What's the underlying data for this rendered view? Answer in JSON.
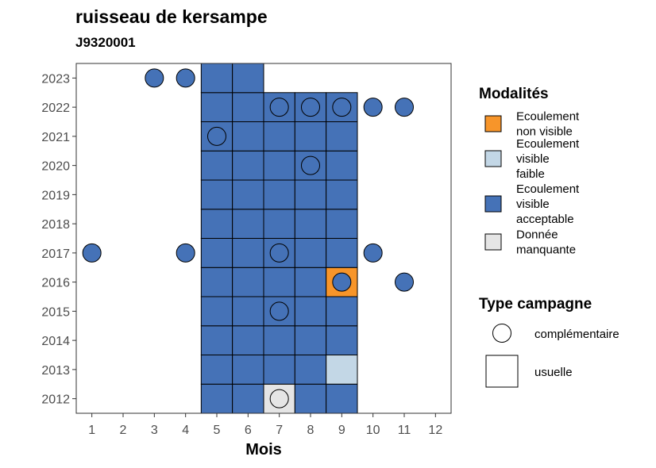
{
  "chart_data": {
    "type": "heatmap",
    "title": "ruisseau de kersampe",
    "subtitle": "J9320001",
    "xlabel": "Mois",
    "ylabel": "",
    "x_ticks": [
      1,
      2,
      3,
      4,
      5,
      6,
      7,
      8,
      9,
      10,
      11,
      12
    ],
    "y_ticks": [
      2012,
      2013,
      2014,
      2015,
      2016,
      2017,
      2018,
      2019,
      2020,
      2021,
      2022,
      2023
    ],
    "xlim": [
      0.5,
      12.5
    ],
    "ylim": [
      2011.5,
      2023.5
    ],
    "colors": {
      "non_visible": "#F7952A",
      "visible_faible": "#C3D7E6",
      "visible_acceptable": "#4572B7",
      "manquante": "#E5E5E5"
    },
    "usual_cells": [
      {
        "year": 2012,
        "month": 5,
        "cat": "visible_acceptable"
      },
      {
        "year": 2012,
        "month": 6,
        "cat": "visible_acceptable"
      },
      {
        "year": 2012,
        "month": 7,
        "cat": "manquante"
      },
      {
        "year": 2012,
        "month": 8,
        "cat": "visible_acceptable"
      },
      {
        "year": 2012,
        "month": 9,
        "cat": "visible_acceptable"
      },
      {
        "year": 2013,
        "month": 5,
        "cat": "visible_acceptable"
      },
      {
        "year": 2013,
        "month": 6,
        "cat": "visible_acceptable"
      },
      {
        "year": 2013,
        "month": 7,
        "cat": "visible_acceptable"
      },
      {
        "year": 2013,
        "month": 8,
        "cat": "visible_acceptable"
      },
      {
        "year": 2013,
        "month": 9,
        "cat": "visible_faible"
      },
      {
        "year": 2014,
        "month": 5,
        "cat": "visible_acceptable"
      },
      {
        "year": 2014,
        "month": 6,
        "cat": "visible_acceptable"
      },
      {
        "year": 2014,
        "month": 7,
        "cat": "visible_acceptable"
      },
      {
        "year": 2014,
        "month": 8,
        "cat": "visible_acceptable"
      },
      {
        "year": 2014,
        "month": 9,
        "cat": "visible_acceptable"
      },
      {
        "year": 2015,
        "month": 5,
        "cat": "visible_acceptable"
      },
      {
        "year": 2015,
        "month": 6,
        "cat": "visible_acceptable"
      },
      {
        "year": 2015,
        "month": 7,
        "cat": "visible_acceptable"
      },
      {
        "year": 2015,
        "month": 8,
        "cat": "visible_acceptable"
      },
      {
        "year": 2015,
        "month": 9,
        "cat": "visible_acceptable"
      },
      {
        "year": 2016,
        "month": 5,
        "cat": "visible_acceptable"
      },
      {
        "year": 2016,
        "month": 6,
        "cat": "visible_acceptable"
      },
      {
        "year": 2016,
        "month": 7,
        "cat": "visible_acceptable"
      },
      {
        "year": 2016,
        "month": 8,
        "cat": "visible_acceptable"
      },
      {
        "year": 2016,
        "month": 9,
        "cat": "non_visible"
      },
      {
        "year": 2017,
        "month": 5,
        "cat": "visible_acceptable"
      },
      {
        "year": 2017,
        "month": 6,
        "cat": "visible_acceptable"
      },
      {
        "year": 2017,
        "month": 7,
        "cat": "visible_acceptable"
      },
      {
        "year": 2017,
        "month": 8,
        "cat": "visible_acceptable"
      },
      {
        "year": 2017,
        "month": 9,
        "cat": "visible_acceptable"
      },
      {
        "year": 2018,
        "month": 5,
        "cat": "visible_acceptable"
      },
      {
        "year": 2018,
        "month": 6,
        "cat": "visible_acceptable"
      },
      {
        "year": 2018,
        "month": 7,
        "cat": "visible_acceptable"
      },
      {
        "year": 2018,
        "month": 8,
        "cat": "visible_acceptable"
      },
      {
        "year": 2018,
        "month": 9,
        "cat": "visible_acceptable"
      },
      {
        "year": 2019,
        "month": 5,
        "cat": "visible_acceptable"
      },
      {
        "year": 2019,
        "month": 6,
        "cat": "visible_acceptable"
      },
      {
        "year": 2019,
        "month": 7,
        "cat": "visible_acceptable"
      },
      {
        "year": 2019,
        "month": 8,
        "cat": "visible_acceptable"
      },
      {
        "year": 2019,
        "month": 9,
        "cat": "visible_acceptable"
      },
      {
        "year": 2020,
        "month": 5,
        "cat": "visible_acceptable"
      },
      {
        "year": 2020,
        "month": 6,
        "cat": "visible_acceptable"
      },
      {
        "year": 2020,
        "month": 7,
        "cat": "visible_acceptable"
      },
      {
        "year": 2020,
        "month": 8,
        "cat": "visible_acceptable"
      },
      {
        "year": 2020,
        "month": 9,
        "cat": "visible_acceptable"
      },
      {
        "year": 2021,
        "month": 5,
        "cat": "visible_acceptable"
      },
      {
        "year": 2021,
        "month": 6,
        "cat": "visible_acceptable"
      },
      {
        "year": 2021,
        "month": 7,
        "cat": "visible_acceptable"
      },
      {
        "year": 2021,
        "month": 8,
        "cat": "visible_acceptable"
      },
      {
        "year": 2021,
        "month": 9,
        "cat": "visible_acceptable"
      },
      {
        "year": 2022,
        "month": 5,
        "cat": "visible_acceptable"
      },
      {
        "year": 2022,
        "month": 6,
        "cat": "visible_acceptable"
      },
      {
        "year": 2022,
        "month": 7,
        "cat": "visible_acceptable"
      },
      {
        "year": 2022,
        "month": 8,
        "cat": "visible_acceptable"
      },
      {
        "year": 2022,
        "month": 9,
        "cat": "visible_acceptable"
      },
      {
        "year": 2023,
        "month": 5,
        "cat": "visible_acceptable"
      },
      {
        "year": 2023,
        "month": 6,
        "cat": "visible_acceptable"
      }
    ],
    "complementary_points": [
      {
        "year": 2012,
        "month": 7,
        "cat": "manquante"
      },
      {
        "year": 2015,
        "month": 7,
        "cat": "visible_acceptable"
      },
      {
        "year": 2016,
        "month": 9,
        "cat": "visible_acceptable"
      },
      {
        "year": 2016,
        "month": 11,
        "cat": "visible_acceptable"
      },
      {
        "year": 2017,
        "month": 1,
        "cat": "visible_acceptable"
      },
      {
        "year": 2017,
        "month": 4,
        "cat": "visible_acceptable"
      },
      {
        "year": 2017,
        "month": 7,
        "cat": "visible_acceptable"
      },
      {
        "year": 2017,
        "month": 10,
        "cat": "visible_acceptable"
      },
      {
        "year": 2020,
        "month": 8,
        "cat": "visible_acceptable"
      },
      {
        "year": 2021,
        "month": 5,
        "cat": "visible_acceptable"
      },
      {
        "year": 2022,
        "month": 7,
        "cat": "visible_acceptable"
      },
      {
        "year": 2022,
        "month": 8,
        "cat": "visible_acceptable"
      },
      {
        "year": 2022,
        "month": 9,
        "cat": "visible_acceptable"
      },
      {
        "year": 2022,
        "month": 10,
        "cat": "visible_acceptable"
      },
      {
        "year": 2022,
        "month": 11,
        "cat": "visible_acceptable"
      },
      {
        "year": 2023,
        "month": 3,
        "cat": "visible_acceptable"
      },
      {
        "year": 2023,
        "month": 4,
        "cat": "visible_acceptable"
      }
    ],
    "legend": {
      "modalites_title": "Modalités",
      "modalites": [
        {
          "key": "non_visible",
          "lines": [
            "Ecoulement",
            "non visible"
          ]
        },
        {
          "key": "visible_faible",
          "lines": [
            "Ecoulement",
            "visible",
            "faible"
          ]
        },
        {
          "key": "visible_acceptable",
          "lines": [
            "Ecoulement",
            "visible",
            "acceptable"
          ]
        },
        {
          "key": "manquante",
          "lines": [
            "Donnée",
            "manquante"
          ]
        }
      ],
      "type_title": "Type campagne",
      "types": [
        {
          "key": "complementaire",
          "label": "complémentaire"
        },
        {
          "key": "usuelle",
          "label": "usuelle"
        }
      ]
    }
  }
}
